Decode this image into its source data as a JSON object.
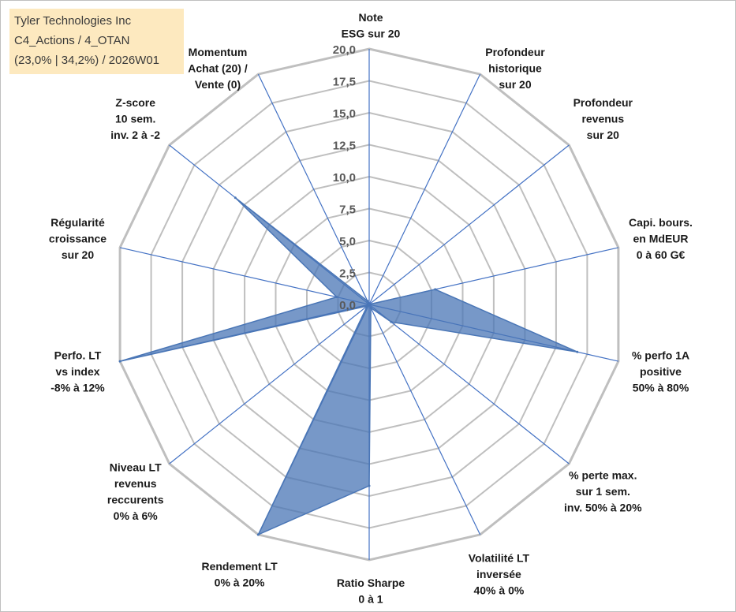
{
  "info_box": {
    "line1": "Tyler Technologies Inc",
    "line2": "C4_Actions / 4_OTAN",
    "line3": "(23,0% | 34,2%) / 2026W01"
  },
  "colors": {
    "grid": "#bfbfbf",
    "spoke": "#4472c4",
    "fill": "#4a76b6",
    "fill_opacity": 0.75,
    "info_bg": "#fde9bf"
  },
  "chart_data": {
    "type": "radar",
    "title": "",
    "axis_range": [
      0,
      20
    ],
    "ticks": [
      "0,0",
      "2,5",
      "5,0",
      "7,5",
      "10,0",
      "12,5",
      "15,0",
      "17,5",
      "20,0"
    ],
    "tick_values": [
      0,
      2.5,
      5,
      7.5,
      10,
      12.5,
      15,
      17.5,
      20
    ],
    "categories": [
      [
        "Note",
        "ESG sur 20"
      ],
      [
        "Profondeur",
        "historique",
        "sur 20"
      ],
      [
        "Profondeur",
        "revenus",
        "sur 20"
      ],
      [
        "Capi. bours.",
        "en MdEUR",
        "0 à 60 G€"
      ],
      [
        "% perfo 1A",
        "positive",
        "50% à 80%"
      ],
      [
        "% perte max.",
        "sur 1 sem.",
        "inv. 50% à 20%"
      ],
      [
        "Volatilité LT",
        "inversée",
        "40% à 0%"
      ],
      [
        "Ratio Sharpe",
        "0 à 1"
      ],
      [
        "Rendement LT",
        "0% à 20%"
      ],
      [
        "Niveau LT",
        "revenus",
        "reccurents",
        "0% à 6%"
      ],
      [
        "Perfo. LT",
        "vs index",
        "-8% à 12%"
      ],
      [
        "Régularité",
        "croissance",
        "sur 20"
      ],
      [
        "Z-score",
        "10 sem.",
        "inv. 2 à -2"
      ],
      [
        "Momentum",
        "Achat (20) /",
        "Vente (0)"
      ]
    ],
    "series": [
      {
        "values": [
          0,
          0,
          0,
          5.3,
          16.7,
          2.2,
          0.3,
          14.2,
          20,
          0.2,
          20,
          2.6,
          13.4,
          0.3
        ]
      }
    ],
    "grid": true,
    "legend": "none"
  }
}
